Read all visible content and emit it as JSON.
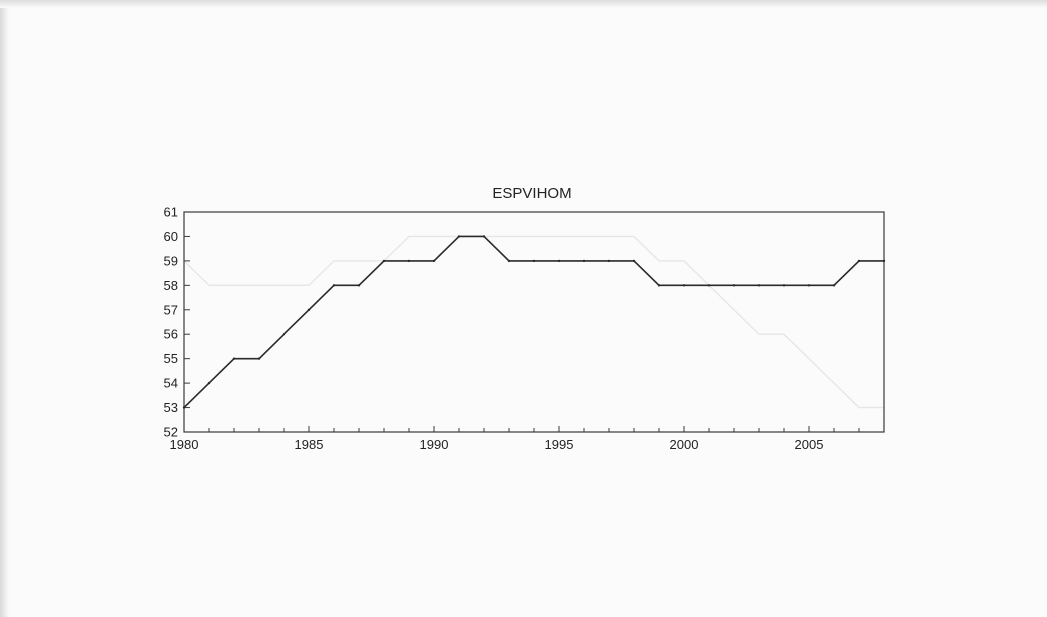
{
  "chart_data": {
    "type": "line",
    "title": "ESPVIHOM",
    "xlabel": "",
    "ylabel": "",
    "xlim": [
      1980,
      2008
    ],
    "ylim": [
      52,
      61
    ],
    "x_ticks": [
      "1980",
      "1985",
      "1990",
      "1995",
      "2000",
      "2005"
    ],
    "y_ticks": [
      "52",
      "53",
      "54",
      "55",
      "56",
      "57",
      "58",
      "59",
      "60",
      "61"
    ],
    "grid": false,
    "legend": "none",
    "series": [
      {
        "x": [
          1980,
          1981,
          1982,
          1983,
          1984,
          1985,
          1986,
          1987,
          1988,
          1989,
          1990,
          1991,
          1992,
          1993,
          1994,
          1995,
          1996,
          1997,
          1998,
          1999,
          2000,
          2001,
          2002,
          2003,
          2004,
          2005,
          2006,
          2007,
          2008
        ],
        "values": [
          53,
          54,
          55,
          55,
          56,
          57,
          58,
          58,
          59,
          59,
          59,
          60,
          60,
          59,
          59,
          59,
          59,
          59,
          59,
          58,
          58,
          58,
          58,
          58,
          58,
          58,
          58,
          59,
          59
        ],
        "color": "#2a2a2a"
      }
    ],
    "ghost_series": {
      "x": [
        1980,
        1981,
        1982,
        1983,
        1984,
        1985,
        1986,
        1987,
        1988,
        1989,
        1990,
        1991,
        1992,
        1993,
        1994,
        1995,
        1996,
        1997,
        1998,
        1999,
        2000,
        2001,
        2002,
        2003,
        2004,
        2005,
        2006,
        2007,
        2008
      ],
      "values": [
        59,
        58,
        58,
        58,
        58,
        58,
        59,
        59,
        59,
        60,
        60,
        60,
        60,
        60,
        60,
        60,
        60,
        60,
        60,
        59,
        59,
        58,
        57,
        56,
        56,
        55,
        54,
        53,
        53
      ],
      "color": "#e6e6e6"
    }
  }
}
